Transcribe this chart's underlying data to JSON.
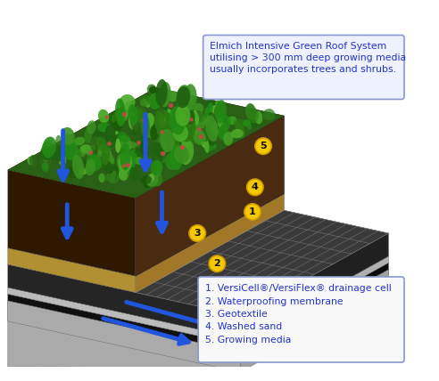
{
  "title_box": {
    "text": "Elmich Intensive Green Roof System\nutilising > 300 mm deep growing media\nusually incorporates trees and shrubs.",
    "fontsize": 7.8,
    "color": "#2233cc",
    "bg_color": "#eef2ff",
    "edge_color": "#8899cc"
  },
  "legend_lines": [
    "1. VersiCell®/VersiFlex® drainage cell",
    "2. Waterproofing membrane",
    "3. Geotextile",
    "4. Washed sand",
    "5. Growing media"
  ],
  "legend_fontsize": 7.8,
  "legend_color": "#2233cc",
  "legend_bg": "#f8f8f8",
  "legend_edge": "#8899cc",
  "fig_bg": "#ffffff",
  "layers": {
    "concrete": {
      "top": "#c0c0c0",
      "front": "#aaaaaa",
      "right": "#a0a0a0"
    },
    "drain": {
      "top": "#3a3a3a",
      "front": "#252525",
      "right": "#202020"
    },
    "membrane": {
      "top": "#181818",
      "front": "#101010",
      "right": "#0c0c0c"
    },
    "geo": {
      "top": "#cccccc",
      "front": "#bbbbbb",
      "right": "#b0b0b0"
    },
    "sand": {
      "top": "#c8a840",
      "front": "#b09030",
      "right": "#a07828"
    },
    "soil": {
      "top": "#3c2008",
      "front": "#2e1800",
      "right": "#281400"
    },
    "veg_base": "#2a6015"
  },
  "arrow_color": "#2255dd",
  "circle_color": "#f5c800",
  "circle_edge": "#cc9900"
}
